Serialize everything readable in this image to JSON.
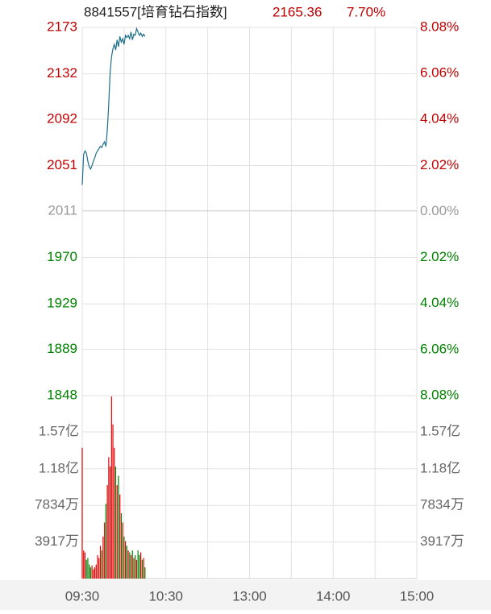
{
  "header": {
    "name": "8841557[培育钻石指数]",
    "price": "2165.36",
    "change": "7.70%"
  },
  "chart_data": [
    {
      "type": "line",
      "color": "#1f6f8b",
      "x": [
        0,
        1,
        2,
        3,
        4,
        5,
        6,
        7,
        8,
        9,
        10,
        11,
        12,
        13,
        14,
        15,
        16,
        17,
        18,
        19,
        20,
        21,
        22,
        23,
        24,
        25,
        26,
        27,
        28,
        29,
        30,
        31,
        32,
        33,
        34,
        35,
        36,
        37,
        38,
        39,
        40,
        41,
        42,
        43,
        44,
        45
      ],
      "values": [
        2034,
        2061,
        2064,
        2062,
        2055,
        2050,
        2048,
        2051,
        2055,
        2058,
        2062,
        2064,
        2066,
        2068,
        2067,
        2070,
        2072,
        2068,
        2083,
        2105,
        2133,
        2147,
        2154,
        2158,
        2153,
        2162,
        2156,
        2165,
        2160,
        2163,
        2158,
        2166,
        2164,
        2166,
        2163,
        2169,
        2162,
        2167,
        2166,
        2172,
        2169,
        2166,
        2168,
        2165,
        2167,
        2165
      ],
      "xlim": [
        0,
        240
      ],
      "xticks": [
        {
          "value": 0,
          "label": "09:30"
        },
        {
          "value": 60,
          "label": "10:30"
        },
        {
          "value": 120,
          "label": "13:00"
        },
        {
          "value": 180,
          "label": "14:00"
        },
        {
          "value": 240,
          "label": "15:00"
        }
      ],
      "ylim": [
        1848,
        2173
      ],
      "yticks": [
        2173,
        2132,
        2092,
        2051,
        2011,
        1970,
        1929,
        1889,
        1848
      ],
      "y2lim": [
        -8.08,
        8.08
      ],
      "y2ticks": [
        {
          "value": 8.08,
          "label": "8.08%"
        },
        {
          "value": 6.06,
          "label": "6.06%"
        },
        {
          "value": 4.04,
          "label": "4.04%"
        },
        {
          "value": 2.02,
          "label": "2.02%"
        },
        {
          "value": 0,
          "label": "0.00%"
        },
        {
          "value": -2.02,
          "label": "2.02%"
        },
        {
          "value": -4.04,
          "label": "4.04%"
        },
        {
          "value": -6.06,
          "label": "6.06%"
        },
        {
          "value": -8.08,
          "label": "8.08%"
        }
      ],
      "up_color": "#c00000",
      "down_color": "#008000",
      "flat_color": "#999999",
      "grid": true
    },
    {
      "type": "bar",
      "up_color": "#e00000",
      "down_color": "#008000",
      "x": [
        0,
        1,
        2,
        3,
        4,
        5,
        6,
        7,
        8,
        9,
        10,
        11,
        12,
        13,
        14,
        15,
        16,
        17,
        18,
        19,
        20,
        21,
        22,
        23,
        24,
        25,
        26,
        27,
        28,
        29,
        30,
        31,
        32,
        33,
        34,
        35,
        36,
        37,
        38,
        39,
        40,
        41,
        42,
        43,
        44,
        45
      ],
      "values": [
        140000000,
        30000000,
        28000000,
        20000000,
        22000000,
        15000000,
        12000000,
        14000000,
        10000000,
        12000000,
        15000000,
        25000000,
        22000000,
        35000000,
        30000000,
        45000000,
        60000000,
        80000000,
        100000000,
        130000000,
        120000000,
        195000000,
        165000000,
        140000000,
        120000000,
        100000000,
        110000000,
        90000000,
        70000000,
        60000000,
        45000000,
        40000000,
        35000000,
        30000000,
        28000000,
        25000000,
        30000000,
        22000000,
        25000000,
        20000000,
        30000000,
        25000000,
        28000000,
        20000000,
        22000000,
        12000000
      ],
      "ylim": [
        0,
        195850000
      ],
      "yticks": [
        {
          "value": 157000000,
          "label": "1.57亿"
        },
        {
          "value": 117500000,
          "label": "1.18亿"
        },
        {
          "value": 78340000,
          "label": "7834万"
        },
        {
          "value": 39170000,
          "label": "3917万"
        }
      ],
      "grid": true
    }
  ]
}
